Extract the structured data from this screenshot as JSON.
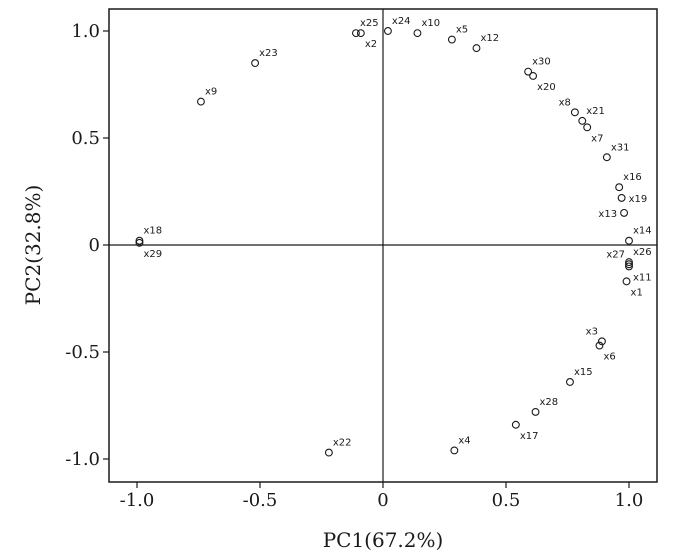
{
  "chart_data": {
    "type": "scatter",
    "xlabel": "PC1(67.2%)",
    "ylabel": "PC2(32.8%)",
    "xlim": [
      -1.1,
      1.1
    ],
    "ylim": [
      -1.1,
      1.1
    ],
    "x_ticks": [
      {
        "value": -1.0,
        "label": "-1.0"
      },
      {
        "value": -0.5,
        "label": "-0.5"
      },
      {
        "value": 0.0,
        "label": "0"
      },
      {
        "value": 0.5,
        "label": "0.5"
      },
      {
        "value": 1.0,
        "label": "1.0"
      }
    ],
    "y_ticks": [
      {
        "value": 1.0,
        "label": "1.0"
      },
      {
        "value": 0.5,
        "label": "0.5"
      },
      {
        "value": 0.0,
        "label": "0"
      },
      {
        "value": -0.5,
        "label": "-0.5"
      },
      {
        "value": -1.0,
        "label": "-1.0"
      }
    ],
    "grid": false,
    "reference_lines": {
      "x": 0,
      "y": 0
    },
    "marker": "open-circle",
    "points": [
      {
        "label": "x1",
        "x": 0.99,
        "y": -0.17,
        "pos": "br"
      },
      {
        "label": "x2",
        "x": -0.09,
        "y": 0.99,
        "pos": "br"
      },
      {
        "label": "x3",
        "x": 0.89,
        "y": -0.45,
        "pos": "tl"
      },
      {
        "label": "x4",
        "x": 0.29,
        "y": -0.96,
        "pos": "tr"
      },
      {
        "label": "x5",
        "x": 0.28,
        "y": 0.96,
        "pos": "tr"
      },
      {
        "label": "x6",
        "x": 0.88,
        "y": -0.47,
        "pos": "br"
      },
      {
        "label": "x7",
        "x": 0.83,
        "y": 0.55,
        "pos": "br"
      },
      {
        "label": "x8",
        "x": 0.78,
        "y": 0.62,
        "pos": "tl"
      },
      {
        "label": "x9",
        "x": -0.74,
        "y": 0.67,
        "pos": "tr"
      },
      {
        "label": "x10",
        "x": 0.14,
        "y": 0.99,
        "pos": "tr"
      },
      {
        "label": "x11",
        "x": 1.0,
        "y": -0.1,
        "pos": "br"
      },
      {
        "label": "x12",
        "x": 0.38,
        "y": 0.92,
        "pos": "tr"
      },
      {
        "label": "x13",
        "x": 0.98,
        "y": 0.15,
        "pos": "l"
      },
      {
        "label": "x14",
        "x": 1.0,
        "y": 0.02,
        "pos": "tr"
      },
      {
        "label": "x15",
        "x": 0.76,
        "y": -0.64,
        "pos": "tr"
      },
      {
        "label": "x16",
        "x": 0.96,
        "y": 0.27,
        "pos": "tr"
      },
      {
        "label": "x17",
        "x": 0.54,
        "y": -0.84,
        "pos": "br"
      },
      {
        "label": "x18",
        "x": -0.99,
        "y": 0.02,
        "pos": "tr"
      },
      {
        "label": "x19",
        "x": 0.97,
        "y": 0.22,
        "pos": "r"
      },
      {
        "label": "x20",
        "x": 0.61,
        "y": 0.79,
        "pos": "br"
      },
      {
        "label": "x21",
        "x": 0.81,
        "y": 0.58,
        "pos": "tr"
      },
      {
        "label": "x22",
        "x": -0.22,
        "y": -0.97,
        "pos": "tr"
      },
      {
        "label": "x23",
        "x": -0.52,
        "y": 0.85,
        "pos": "tr"
      },
      {
        "label": "x24",
        "x": 0.02,
        "y": 1.0,
        "pos": "tr"
      },
      {
        "label": "x25",
        "x": -0.11,
        "y": 0.99,
        "pos": "tr"
      },
      {
        "label": "x26",
        "x": 1.0,
        "y": -0.08,
        "pos": "tr"
      },
      {
        "label": "x27",
        "x": 1.0,
        "y": -0.09,
        "pos": "tl"
      },
      {
        "label": "x28",
        "x": 0.62,
        "y": -0.78,
        "pos": "tr"
      },
      {
        "label": "x29",
        "x": -0.99,
        "y": 0.01,
        "pos": "br"
      },
      {
        "label": "x30",
        "x": 0.59,
        "y": 0.81,
        "pos": "tr"
      },
      {
        "label": "x31",
        "x": 0.91,
        "y": 0.41,
        "pos": "tr"
      }
    ]
  }
}
